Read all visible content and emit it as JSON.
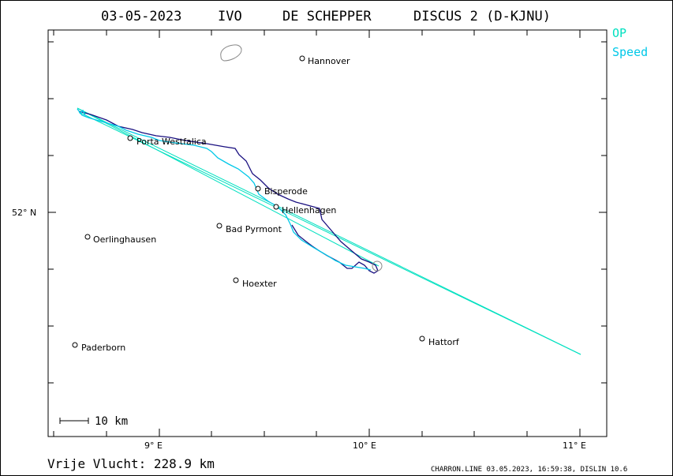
{
  "header": {
    "date": "03-05-2023",
    "code": "IVO",
    "pilot": "DE SCHEPPER",
    "glider": "DISCUS 2 (D-KJNU)"
  },
  "legend": [
    {
      "label": "OP",
      "color": "#00e0c0"
    },
    {
      "label": "Speed",
      "color": "#00c8e8"
    }
  ],
  "axes": {
    "lat_label": "52° N",
    "lon_labels": [
      "9° E",
      "10° E",
      "11° E"
    ]
  },
  "towns": [
    {
      "name": "Hannover"
    },
    {
      "name": "Porta Westfalica"
    },
    {
      "name": "Bisperode"
    },
    {
      "name": "Hellenhagen"
    },
    {
      "name": "Bad Pyrmont"
    },
    {
      "name": "Oerlinghausen"
    },
    {
      "name": "Hoexter"
    },
    {
      "name": "Paderborn"
    },
    {
      "name": "Hattorf"
    }
  ],
  "scale": {
    "label": "10  km"
  },
  "footer": {
    "left": "Vrije Vlucht:  228.9 km",
    "right": "CHARRON.LINE 03.05.2023, 16:59:38, DISLIN 10.6"
  },
  "colors": {
    "track_dark": "#1a1080",
    "track_cyan": "#00c8e8",
    "task_line": "#00e0c0",
    "frame": "#000000"
  }
}
